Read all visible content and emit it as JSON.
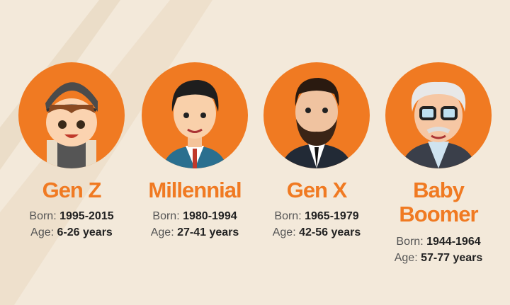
{
  "colors": {
    "accent": "#f07a22",
    "background": "#f3e9da"
  },
  "generations": [
    {
      "name": "Gen Z",
      "born_label": "Born:",
      "born": "1995-2015",
      "age_label": "Age:",
      "age": "6-26 years",
      "icon": "boy-with-cap-avatar"
    },
    {
      "name": "Millennial",
      "born_label": "Born:",
      "born": "1980-1994",
      "age_label": "Age:",
      "age": "27-41 years",
      "icon": "young-man-avatar"
    },
    {
      "name": "Gen X",
      "born_label": "Born:",
      "born": "1965-1979",
      "age_label": "Age:",
      "age": "42-56 years",
      "icon": "bearded-man-avatar"
    },
    {
      "name": "Baby",
      "name2": "Boomer",
      "born_label": "Born:",
      "born": "1944-1964",
      "age_label": "Age:",
      "age": "57-77 years",
      "icon": "old-man-glasses-avatar"
    }
  ]
}
